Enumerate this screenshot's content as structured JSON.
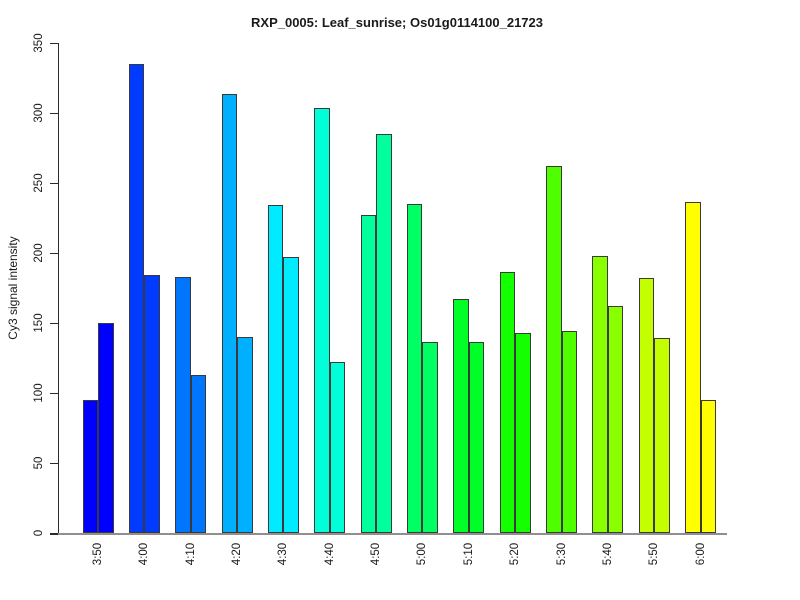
{
  "title": "RXP_0005: Leaf_sunrise; Os01g0114100_21723",
  "chart_data": {
    "type": "bar",
    "title": "RXP_0005: Leaf_sunrise; Os01g0114100_21723",
    "xlabel": "",
    "ylabel": "Cy3 signal intensity",
    "ylim": [
      0,
      350
    ],
    "yticks": [
      0,
      50,
      100,
      150,
      200,
      250,
      300,
      350
    ],
    "grid": false,
    "legend": "none",
    "categories": [
      "3:50",
      "4:00",
      "4:10",
      "4:20",
      "4:30",
      "4:40",
      "4:50",
      "5:00",
      "5:10",
      "5:20",
      "5:30",
      "5:40",
      "5:50",
      "6:00"
    ],
    "values_per_category": [
      [
        95,
        150
      ],
      [
        335,
        184
      ],
      [
        183,
        113
      ],
      [
        313,
        140
      ],
      [
        234,
        197
      ],
      [
        303,
        122
      ],
      [
        227,
        285
      ],
      [
        235,
        136
      ],
      [
        167,
        136
      ],
      [
        186,
        143
      ],
      [
        262,
        144
      ],
      [
        198,
        162
      ],
      [
        182,
        139
      ],
      [
        236,
        95
      ]
    ],
    "bar_colors": [
      "#0000FF",
      "#003BFF",
      "#0076FF",
      "#00B0FF",
      "#00EBFF",
      "#00FFD8",
      "#00FF9D",
      "#00FF62",
      "#00FF27",
      "#14FF00",
      "#4FFF00",
      "#89FF00",
      "#C4FF00",
      "#FFFF00"
    ],
    "bar_border_color": "#3a3a3a",
    "axis_color": "#2b2b2b",
    "baseline_color": "#8f8f8f",
    "text_color": "#1a1a1a",
    "background": "#FFFFFF"
  }
}
